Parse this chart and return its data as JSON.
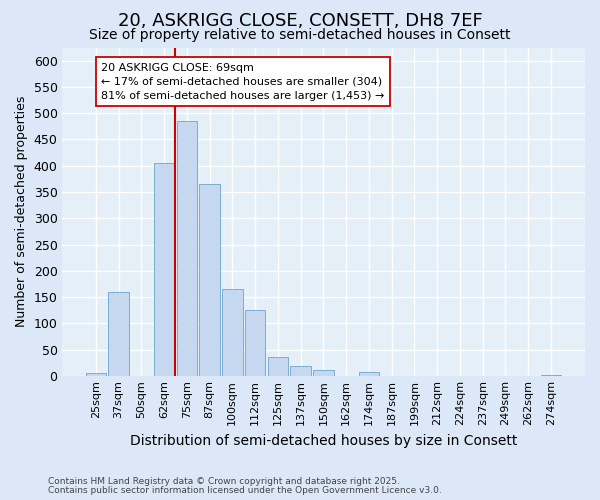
{
  "title": "20, ASKRIGG CLOSE, CONSETT, DH8 7EF",
  "subtitle": "Size of property relative to semi-detached houses in Consett",
  "xlabel": "Distribution of semi-detached houses by size in Consett",
  "ylabel": "Number of semi-detached properties",
  "categories": [
    "25sqm",
    "37sqm",
    "50sqm",
    "62sqm",
    "75sqm",
    "87sqm",
    "100sqm",
    "112sqm",
    "125sqm",
    "137sqm",
    "150sqm",
    "162sqm",
    "174sqm",
    "187sqm",
    "199sqm",
    "212sqm",
    "224sqm",
    "237sqm",
    "249sqm",
    "262sqm",
    "274sqm"
  ],
  "values": [
    5,
    160,
    0,
    405,
    485,
    365,
    165,
    125,
    35,
    18,
    12,
    0,
    8,
    0,
    0,
    0,
    0,
    0,
    0,
    0,
    2
  ],
  "bar_color": "#c5d8f0",
  "bar_edge_color": "#7aadd4",
  "vline_pos": 3.5,
  "vline_color": "#cc0000",
  "annotation_text": "20 ASKRIGG CLOSE: 69sqm\n← 17% of semi-detached houses are smaller (304)\n81% of semi-detached houses are larger (1,453) →",
  "ylim": [
    0,
    625
  ],
  "yticks": [
    0,
    50,
    100,
    150,
    200,
    250,
    300,
    350,
    400,
    450,
    500,
    550,
    600
  ],
  "footer1": "Contains HM Land Registry data © Crown copyright and database right 2025.",
  "footer2": "Contains public sector information licensed under the Open Government Licence v3.0.",
  "bg_color": "#dce8f8",
  "plot_bg_color": "#e4eff8",
  "grid_color": "white",
  "title_fontsize": 13,
  "subtitle_fontsize": 10,
  "ylabel_fontsize": 9,
  "xlabel_fontsize": 10
}
